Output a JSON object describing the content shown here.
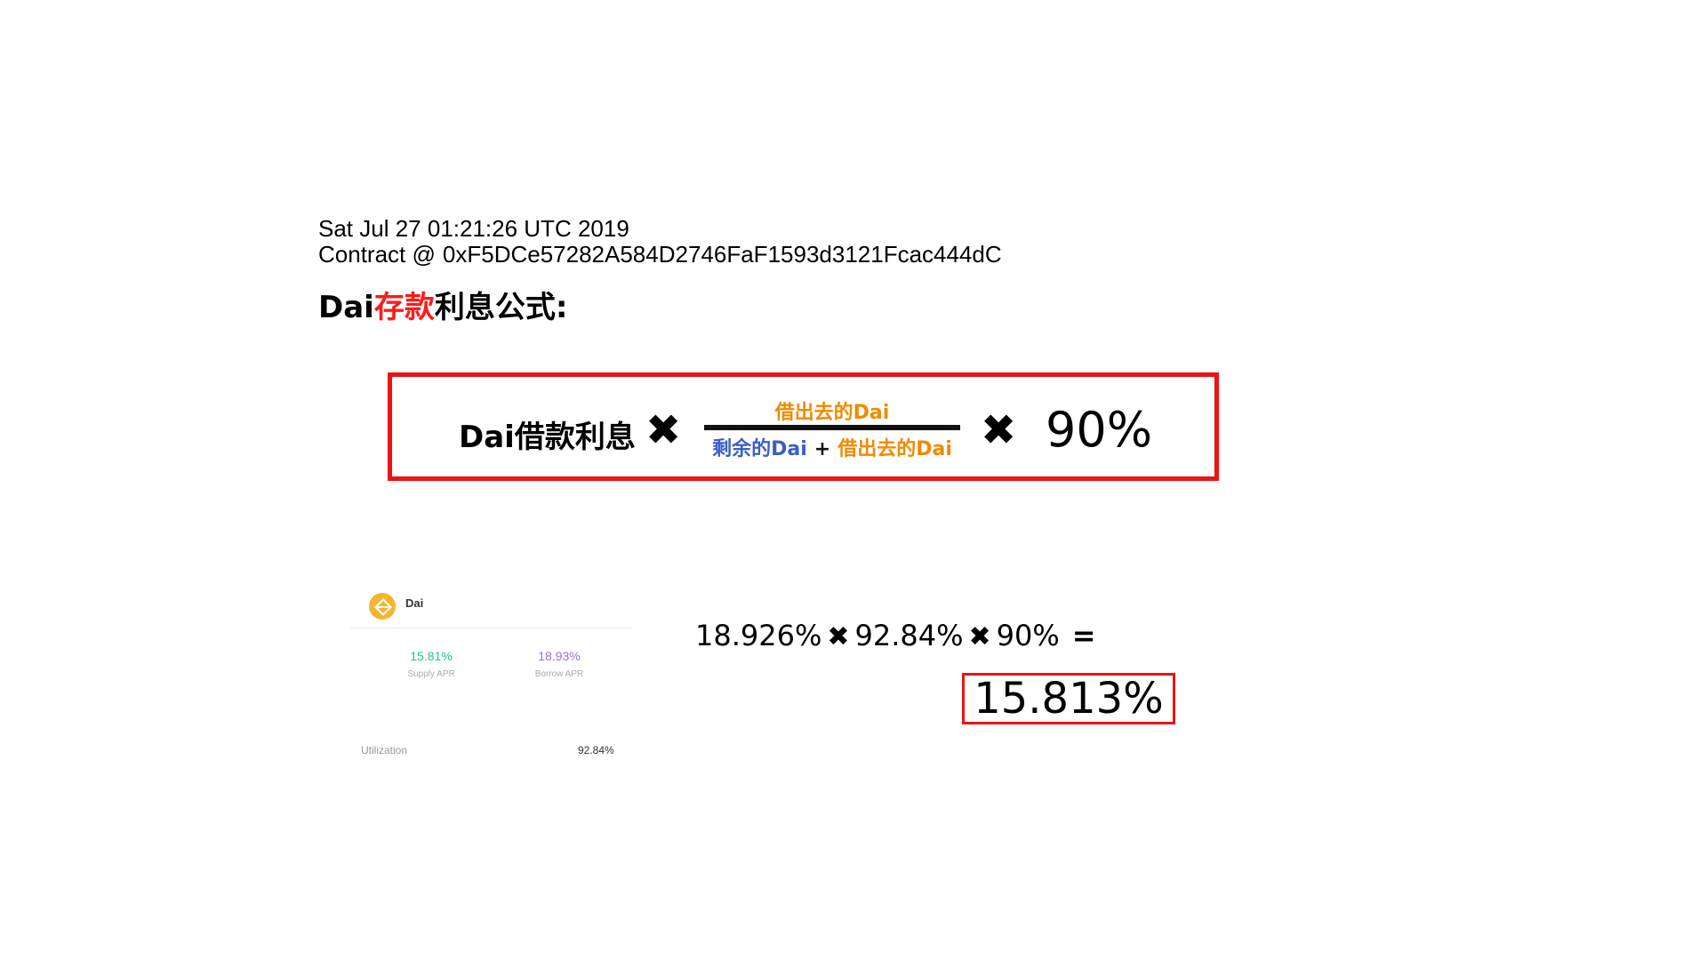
{
  "header": {
    "timestamp": "Sat Jul 27 01:21:26 UTC 2019",
    "contract_label": "Contract @",
    "contract_address": "0xF5DCe57282A584D2746FaF1593d3121Fcac444dC"
  },
  "heading": {
    "prefix": "Dai",
    "highlight": "存款",
    "suffix": "利息公式:"
  },
  "formula": {
    "left_term": "Dai借款利息",
    "times_symbol": "✖",
    "numerator": "借出去的Dai",
    "denominator_remaining": "剩余的Dai",
    "plus": "+",
    "denominator_lent": "借出去的Dai",
    "factor": "90%"
  },
  "market_card": {
    "asset": "Dai",
    "supply_apr_value": "15.81%",
    "supply_apr_label": "Supply APR",
    "borrow_apr_value": "18.93%",
    "borrow_apr_label": "Borrow APR",
    "utilization_label": "Utilization",
    "utilization_value": "92.84%"
  },
  "calculation": {
    "term1": "18.926%",
    "term2": "92.84%",
    "term3": "90%",
    "times_symbol": "✖",
    "equals": "=",
    "result": "15.813%"
  },
  "colors": {
    "highlight_red": "#ff1a1a",
    "box_red": "#ee1111",
    "lent_orange": "#f08a00",
    "remaining_blue": "#3a5fc8",
    "supply_green": "#25c48a",
    "borrow_purple": "#9b6ee0",
    "dai_icon": "#f4b731"
  }
}
